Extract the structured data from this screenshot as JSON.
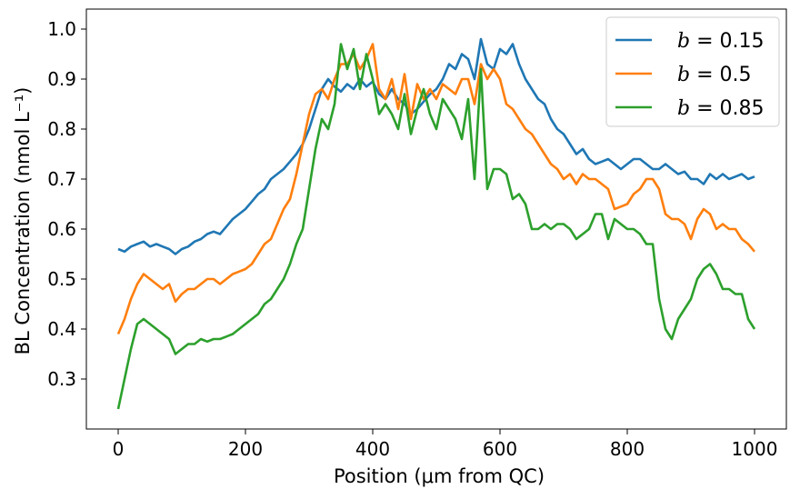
{
  "chart_data": {
    "type": "line",
    "xlabel": "Position (μm from QC)",
    "ylabel": "BL Concentration (nmol L⁻¹)",
    "xlim": [
      -50,
      1050
    ],
    "ylim": [
      0.2,
      1.04
    ],
    "xticks": [
      0,
      200,
      400,
      600,
      800,
      1000
    ],
    "yticks": [
      0.3,
      0.4,
      0.5,
      0.6,
      0.7,
      0.8,
      0.9,
      1.0
    ],
    "xtick_labels": [
      "0",
      "200",
      "400",
      "600",
      "800",
      "1000"
    ],
    "ytick_labels": [
      "0.3",
      "0.4",
      "0.5",
      "0.6",
      "0.7",
      "0.8",
      "0.9",
      "1.0"
    ],
    "grid": false,
    "legend_position": "top-right",
    "series": [
      {
        "name": "b = 0.15",
        "legend_symbol": "b",
        "legend_value": "= 0.15",
        "color": "#1f77b4",
        "x": [
          0,
          10,
          20,
          30,
          40,
          50,
          60,
          70,
          80,
          90,
          100,
          110,
          120,
          130,
          140,
          150,
          160,
          170,
          180,
          190,
          200,
          210,
          220,
          230,
          240,
          250,
          260,
          270,
          280,
          290,
          300,
          310,
          320,
          330,
          340,
          350,
          360,
          370,
          380,
          390,
          400,
          410,
          420,
          430,
          440,
          450,
          460,
          470,
          480,
          490,
          500,
          510,
          520,
          530,
          540,
          550,
          560,
          570,
          580,
          590,
          600,
          610,
          620,
          630,
          640,
          650,
          660,
          670,
          680,
          690,
          700,
          710,
          720,
          730,
          740,
          750,
          760,
          770,
          780,
          790,
          800,
          810,
          820,
          830,
          840,
          850,
          860,
          870,
          880,
          890,
          900,
          910,
          920,
          930,
          940,
          950,
          960,
          970,
          980,
          990,
          1000
        ],
        "y": [
          0.56,
          0.555,
          0.565,
          0.57,
          0.575,
          0.565,
          0.57,
          0.565,
          0.56,
          0.55,
          0.56,
          0.565,
          0.575,
          0.58,
          0.59,
          0.595,
          0.59,
          0.605,
          0.62,
          0.63,
          0.64,
          0.655,
          0.67,
          0.68,
          0.7,
          0.71,
          0.72,
          0.735,
          0.75,
          0.77,
          0.8,
          0.84,
          0.88,
          0.9,
          0.885,
          0.875,
          0.89,
          0.88,
          0.9,
          0.885,
          0.895,
          0.87,
          0.86,
          0.88,
          0.86,
          0.85,
          0.83,
          0.84,
          0.855,
          0.87,
          0.88,
          0.9,
          0.93,
          0.92,
          0.95,
          0.94,
          0.9,
          0.98,
          0.93,
          0.92,
          0.96,
          0.95,
          0.97,
          0.93,
          0.9,
          0.88,
          0.86,
          0.85,
          0.82,
          0.8,
          0.79,
          0.77,
          0.75,
          0.76,
          0.74,
          0.73,
          0.735,
          0.74,
          0.73,
          0.72,
          0.73,
          0.74,
          0.74,
          0.73,
          0.72,
          0.72,
          0.73,
          0.72,
          0.71,
          0.715,
          0.7,
          0.7,
          0.69,
          0.71,
          0.7,
          0.71,
          0.7,
          0.705,
          0.71,
          0.7,
          0.705
        ]
      },
      {
        "name": "b = 0.5",
        "legend_symbol": "b",
        "legend_value": "= 0.5",
        "color": "#ff7f0e",
        "x": [
          0,
          10,
          20,
          30,
          40,
          50,
          60,
          70,
          80,
          90,
          100,
          110,
          120,
          130,
          140,
          150,
          160,
          170,
          180,
          190,
          200,
          210,
          220,
          230,
          240,
          250,
          260,
          270,
          280,
          290,
          300,
          310,
          320,
          330,
          340,
          350,
          360,
          370,
          380,
          390,
          400,
          410,
          420,
          430,
          440,
          450,
          460,
          470,
          480,
          490,
          500,
          510,
          520,
          530,
          540,
          550,
          560,
          570,
          580,
          590,
          600,
          610,
          620,
          630,
          640,
          650,
          660,
          670,
          680,
          690,
          700,
          710,
          720,
          730,
          740,
          750,
          760,
          770,
          780,
          790,
          800,
          810,
          820,
          830,
          840,
          850,
          860,
          870,
          880,
          890,
          900,
          910,
          920,
          930,
          940,
          950,
          960,
          970,
          980,
          990,
          1000
        ],
        "y": [
          0.39,
          0.42,
          0.46,
          0.49,
          0.51,
          0.5,
          0.49,
          0.48,
          0.49,
          0.455,
          0.47,
          0.48,
          0.48,
          0.49,
          0.5,
          0.5,
          0.49,
          0.5,
          0.51,
          0.515,
          0.52,
          0.53,
          0.55,
          0.57,
          0.58,
          0.61,
          0.64,
          0.66,
          0.71,
          0.77,
          0.83,
          0.87,
          0.88,
          0.86,
          0.9,
          0.93,
          0.93,
          0.95,
          0.92,
          0.94,
          0.97,
          0.88,
          0.86,
          0.9,
          0.84,
          0.91,
          0.82,
          0.89,
          0.86,
          0.88,
          0.86,
          0.89,
          0.88,
          0.87,
          0.9,
          0.9,
          0.85,
          0.93,
          0.9,
          0.92,
          0.9,
          0.85,
          0.84,
          0.82,
          0.8,
          0.79,
          0.77,
          0.75,
          0.73,
          0.72,
          0.7,
          0.71,
          0.69,
          0.71,
          0.7,
          0.7,
          0.69,
          0.68,
          0.64,
          0.645,
          0.65,
          0.67,
          0.68,
          0.7,
          0.7,
          0.68,
          0.63,
          0.62,
          0.62,
          0.61,
          0.58,
          0.62,
          0.64,
          0.63,
          0.6,
          0.61,
          0.6,
          0.6,
          0.58,
          0.57,
          0.555
        ]
      },
      {
        "name": "b = 0.85",
        "legend_symbol": "b",
        "legend_value": "= 0.85",
        "color": "#2ca02c",
        "x": [
          0,
          10,
          20,
          30,
          40,
          50,
          60,
          70,
          80,
          90,
          100,
          110,
          120,
          130,
          140,
          150,
          160,
          170,
          180,
          190,
          200,
          210,
          220,
          230,
          240,
          250,
          260,
          270,
          280,
          290,
          300,
          310,
          320,
          330,
          340,
          350,
          360,
          370,
          380,
          390,
          400,
          410,
          420,
          430,
          440,
          450,
          460,
          470,
          480,
          490,
          500,
          510,
          520,
          530,
          540,
          550,
          560,
          570,
          580,
          590,
          600,
          610,
          620,
          630,
          640,
          650,
          660,
          670,
          680,
          690,
          700,
          710,
          720,
          730,
          740,
          750,
          760,
          770,
          780,
          790,
          800,
          810,
          820,
          830,
          840,
          850,
          860,
          870,
          880,
          890,
          900,
          910,
          920,
          930,
          940,
          950,
          960,
          970,
          980,
          990,
          1000
        ],
        "y": [
          0.24,
          0.3,
          0.36,
          0.41,
          0.42,
          0.41,
          0.4,
          0.39,
          0.38,
          0.35,
          0.36,
          0.37,
          0.37,
          0.38,
          0.375,
          0.38,
          0.38,
          0.385,
          0.39,
          0.4,
          0.41,
          0.42,
          0.43,
          0.45,
          0.46,
          0.48,
          0.5,
          0.53,
          0.57,
          0.6,
          0.68,
          0.76,
          0.82,
          0.8,
          0.85,
          0.97,
          0.92,
          0.96,
          0.88,
          0.95,
          0.9,
          0.83,
          0.85,
          0.83,
          0.8,
          0.87,
          0.79,
          0.84,
          0.88,
          0.83,
          0.8,
          0.86,
          0.84,
          0.82,
          0.78,
          0.86,
          0.7,
          0.92,
          0.68,
          0.72,
          0.72,
          0.71,
          0.66,
          0.67,
          0.65,
          0.6,
          0.6,
          0.61,
          0.6,
          0.61,
          0.61,
          0.6,
          0.58,
          0.59,
          0.6,
          0.63,
          0.63,
          0.58,
          0.62,
          0.61,
          0.6,
          0.6,
          0.59,
          0.57,
          0.57,
          0.46,
          0.4,
          0.38,
          0.42,
          0.44,
          0.46,
          0.5,
          0.52,
          0.53,
          0.51,
          0.48,
          0.48,
          0.47,
          0.47,
          0.42,
          0.4
        ]
      }
    ]
  }
}
